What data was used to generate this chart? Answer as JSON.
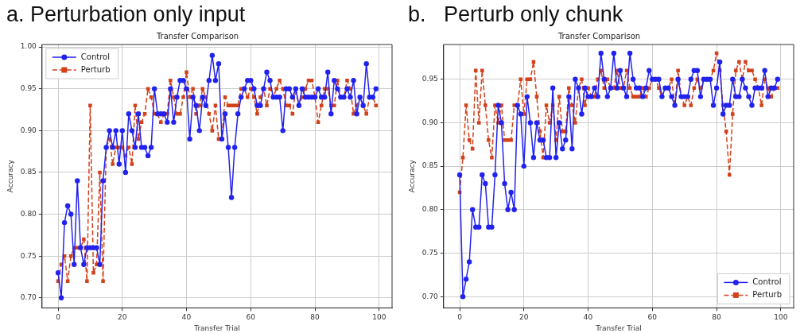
{
  "chart_data": [
    {
      "type": "line",
      "title": "a. Perturbation only input",
      "subtitle": "Transfer Comparison",
      "xlabel": "Transfer Trial",
      "ylabel": "Accuracy",
      "x": [
        0,
        1,
        2,
        3,
        4,
        5,
        6,
        7,
        8,
        9,
        10,
        11,
        12,
        13,
        14,
        15,
        16,
        17,
        18,
        19,
        20,
        21,
        22,
        23,
        24,
        25,
        26,
        27,
        28,
        29,
        30,
        31,
        32,
        33,
        34,
        35,
        36,
        37,
        38,
        39,
        40,
        41,
        42,
        43,
        44,
        45,
        46,
        47,
        48,
        49,
        50,
        51,
        52,
        53,
        54,
        55,
        56,
        57,
        58,
        59,
        60,
        61,
        62,
        63,
        64,
        65,
        66,
        67,
        68,
        69,
        70,
        71,
        72,
        73,
        74,
        75,
        76,
        77,
        78,
        79,
        80,
        81,
        82,
        83,
        84,
        85,
        86,
        87,
        88,
        89,
        90,
        91,
        92,
        93,
        94,
        95,
        96,
        97,
        98,
        99
      ],
      "series": [
        {
          "name": "Control",
          "color": "#2222f0",
          "marker": "circle",
          "line_style": "solid",
          "values": [
            0.73,
            0.7,
            0.79,
            0.81,
            0.8,
            0.74,
            0.84,
            0.76,
            0.74,
            0.76,
            0.76,
            0.76,
            0.76,
            0.74,
            0.84,
            0.88,
            0.9,
            0.88,
            0.9,
            0.86,
            0.9,
            0.85,
            0.92,
            0.9,
            0.88,
            0.92,
            0.88,
            0.88,
            0.87,
            0.88,
            0.95,
            0.92,
            0.92,
            0.92,
            0.91,
            0.95,
            0.91,
            0.94,
            0.96,
            0.96,
            0.95,
            0.89,
            0.94,
            0.93,
            0.9,
            0.94,
            0.93,
            0.96,
            0.99,
            0.96,
            0.98,
            0.89,
            0.92,
            0.88,
            0.82,
            0.88,
            0.92,
            0.94,
            0.95,
            0.96,
            0.96,
            0.95,
            0.93,
            0.93,
            0.95,
            0.97,
            0.96,
            0.94,
            0.94,
            0.94,
            0.9,
            0.95,
            0.95,
            0.94,
            0.95,
            0.93,
            0.95,
            0.94,
            0.94,
            0.94,
            0.94,
            0.95,
            0.94,
            0.94,
            0.97,
            0.92,
            0.96,
            0.95,
            0.94,
            0.94,
            0.95,
            0.94,
            0.96,
            0.92,
            0.94,
            0.93,
            0.98,
            0.94,
            0.94,
            0.95
          ]
        },
        {
          "name": "Perturb",
          "color": "#d2411a",
          "marker": "square",
          "line_style": "dashed",
          "values": [
            0.72,
            0.74,
            0.75,
            0.72,
            0.75,
            0.76,
            0.76,
            0.76,
            0.77,
            0.72,
            0.93,
            0.73,
            0.74,
            0.85,
            0.72,
            0.88,
            0.89,
            0.86,
            0.88,
            0.88,
            0.88,
            0.87,
            0.88,
            0.86,
            0.93,
            0.89,
            0.91,
            0.92,
            0.95,
            0.94,
            0.92,
            0.92,
            0.91,
            0.92,
            0.92,
            0.96,
            0.94,
            0.92,
            0.92,
            0.94,
            0.97,
            0.94,
            0.95,
            0.92,
            0.93,
            0.95,
            0.94,
            0.92,
            0.9,
            0.93,
            0.89,
            0.89,
            0.94,
            0.93,
            0.93,
            0.93,
            0.93,
            0.95,
            0.95,
            0.94,
            0.95,
            0.94,
            0.92,
            0.94,
            0.95,
            0.93,
            0.95,
            0.94,
            0.95,
            0.96,
            0.95,
            0.93,
            0.93,
            0.92,
            0.95,
            0.93,
            0.94,
            0.95,
            0.96,
            0.96,
            0.94,
            0.91,
            0.93,
            0.95,
            0.95,
            0.93,
            0.93,
            0.96,
            0.94,
            0.94,
            0.96,
            0.95,
            0.92,
            0.93,
            0.94,
            0.93,
            0.92,
            0.94,
            0.94,
            0.93
          ]
        }
      ],
      "xlim": [
        -5,
        104
      ],
      "xticks": [
        0,
        20,
        40,
        60,
        80,
        100
      ],
      "ylim": [
        0.688,
        1.003
      ],
      "yticks": [
        {
          "value": 0.7,
          "label": "0.70"
        },
        {
          "value": 0.75,
          "label": "0.75"
        },
        {
          "value": 0.8,
          "label": "0.80"
        },
        {
          "value": 0.85,
          "label": "0.85"
        },
        {
          "value": 0.9,
          "label": "0.90"
        },
        {
          "value": 0.95,
          "label": "0.95"
        },
        {
          "value": 1.0,
          "label": "1.00"
        }
      ],
      "grid": true,
      "legend": "top left"
    },
    {
      "type": "line",
      "title": "b.   Perturb only chunk",
      "subtitle": "Transfer Comparison",
      "xlabel": "Transfer Trial",
      "ylabel": "Accuracy",
      "x": [
        0,
        1,
        2,
        3,
        4,
        5,
        6,
        7,
        8,
        9,
        10,
        11,
        12,
        13,
        14,
        15,
        16,
        17,
        18,
        19,
        20,
        21,
        22,
        23,
        24,
        25,
        26,
        27,
        28,
        29,
        30,
        31,
        32,
        33,
        34,
        35,
        36,
        37,
        38,
        39,
        40,
        41,
        42,
        43,
        44,
        45,
        46,
        47,
        48,
        49,
        50,
        51,
        52,
        53,
        54,
        55,
        56,
        57,
        58,
        59,
        60,
        61,
        62,
        63,
        64,
        65,
        66,
        67,
        68,
        69,
        70,
        71,
        72,
        73,
        74,
        75,
        76,
        77,
        78,
        79,
        80,
        81,
        82,
        83,
        84,
        85,
        86,
        87,
        88,
        89,
        90,
        91,
        92,
        93,
        94,
        95,
        96,
        97,
        98,
        99
      ],
      "series": [
        {
          "name": "Control",
          "color": "#2222f0",
          "marker": "circle",
          "line_style": "solid",
          "values": [
            0.84,
            0.7,
            0.72,
            0.74,
            0.8,
            0.78,
            0.78,
            0.84,
            0.83,
            0.78,
            0.78,
            0.84,
            0.92,
            0.9,
            0.83,
            0.8,
            0.82,
            0.8,
            0.92,
            0.91,
            0.85,
            0.93,
            0.9,
            0.86,
            0.9,
            0.88,
            0.88,
            0.86,
            0.86,
            0.94,
            0.86,
            0.9,
            0.87,
            0.88,
            0.93,
            0.87,
            0.95,
            0.94,
            0.91,
            0.94,
            0.93,
            0.93,
            0.94,
            0.93,
            0.98,
            0.95,
            0.93,
            0.94,
            0.98,
            0.94,
            0.96,
            0.94,
            0.93,
            0.98,
            0.95,
            0.94,
            0.94,
            0.93,
            0.94,
            0.96,
            0.95,
            0.95,
            0.95,
            0.93,
            0.94,
            0.94,
            0.93,
            0.92,
            0.95,
            0.93,
            0.93,
            0.93,
            0.95,
            0.96,
            0.96,
            0.93,
            0.95,
            0.95,
            0.95,
            0.92,
            0.94,
            0.97,
            0.91,
            0.92,
            0.92,
            0.95,
            0.93,
            0.93,
            0.95,
            0.94,
            0.93,
            0.92,
            0.94,
            0.94,
            0.94,
            0.96,
            0.93,
            0.94,
            0.94,
            0.95
          ]
        },
        {
          "name": "Perturb",
          "color": "#d2411a",
          "marker": "square",
          "line_style": "dashed",
          "values": [
            0.82,
            0.86,
            0.92,
            0.88,
            0.87,
            0.96,
            0.9,
            0.96,
            0.92,
            0.88,
            0.86,
            0.92,
            0.9,
            0.92,
            0.88,
            0.88,
            0.88,
            0.92,
            0.92,
            0.95,
            0.91,
            0.95,
            0.95,
            0.97,
            0.93,
            0.89,
            0.86,
            0.92,
            0.9,
            0.92,
            0.88,
            0.93,
            0.89,
            0.89,
            0.94,
            0.92,
            0.9,
            0.94,
            0.95,
            0.92,
            0.94,
            0.93,
            0.93,
            0.95,
            0.96,
            0.94,
            0.95,
            0.94,
            0.94,
            0.96,
            0.94,
            0.94,
            0.96,
            0.94,
            0.93,
            0.93,
            0.93,
            0.94,
            0.93,
            0.94,
            0.95,
            0.95,
            0.94,
            0.93,
            0.94,
            0.94,
            0.95,
            0.92,
            0.96,
            0.93,
            0.92,
            0.93,
            0.92,
            0.94,
            0.95,
            0.94,
            0.95,
            0.95,
            0.95,
            0.96,
            0.98,
            0.96,
            0.92,
            0.89,
            0.84,
            0.91,
            0.96,
            0.97,
            0.95,
            0.97,
            0.96,
            0.96,
            0.95,
            0.94,
            0.92,
            0.95,
            0.94,
            0.93,
            0.94,
            0.94
          ]
        }
      ],
      "xlim": [
        -5,
        104
      ],
      "xticks": [
        0,
        20,
        40,
        60,
        80,
        100
      ],
      "ylim": [
        0.687,
        0.99
      ],
      "yticks": [
        {
          "value": 0.7,
          "label": "0.70"
        },
        {
          "value": 0.75,
          "label": "0.75"
        },
        {
          "value": 0.8,
          "label": "0.80"
        },
        {
          "value": 0.85,
          "label": "0.85"
        },
        {
          "value": 0.9,
          "label": "0.90"
        },
        {
          "value": 0.95,
          "label": "0.95"
        }
      ],
      "grid": true,
      "legend": "bottom right"
    }
  ]
}
